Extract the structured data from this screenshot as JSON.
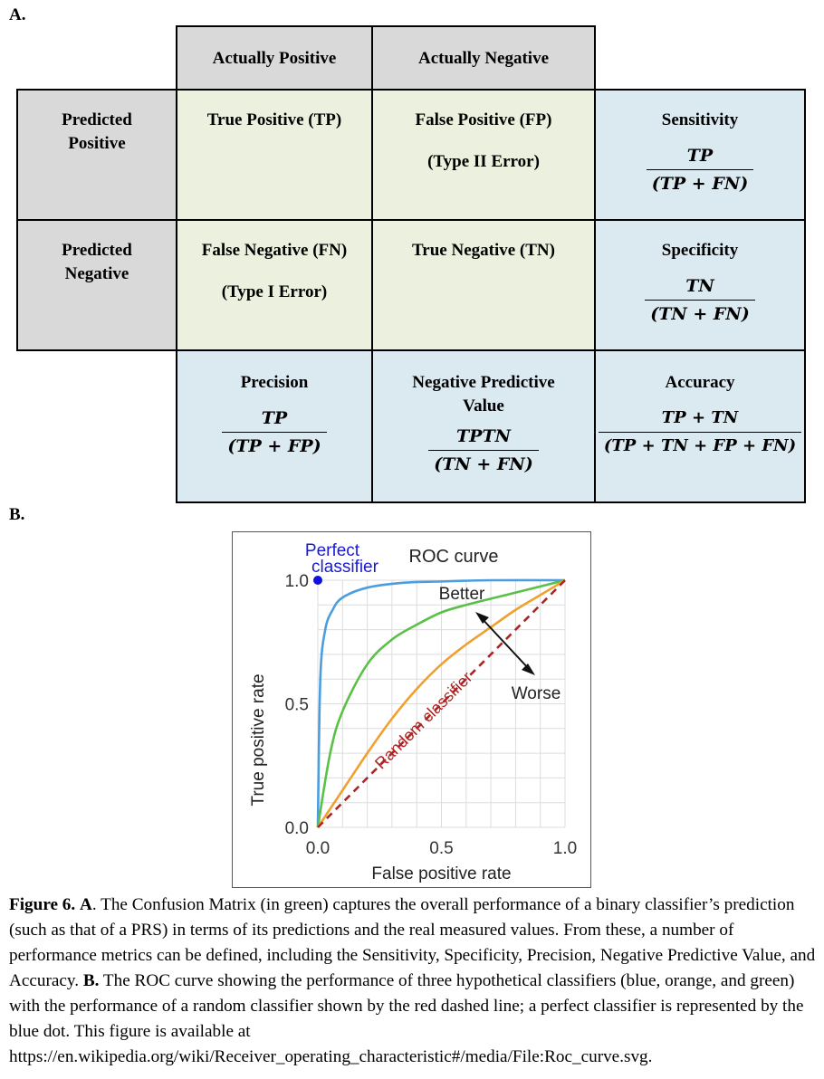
{
  "part_a_label": "A.",
  "part_b_label": "B.",
  "matrix": {
    "col_headers": [
      "Actually Positive",
      "Actually Negative"
    ],
    "rows": [
      {
        "header": "Predicted Positive",
        "cells": [
          {
            "line1": "True Positive (TP)",
            "line2": ""
          },
          {
            "line1": "False Positive (FP)",
            "line2": "(Type II Error)"
          }
        ],
        "metric": {
          "name": "Sensitivity",
          "num": "TP",
          "den": "(TP + FN)"
        }
      },
      {
        "header": "Predicted Negative",
        "cells": [
          {
            "line1": "False Negative (FN)",
            "line2": "(Type I Error)"
          },
          {
            "line1": "True Negative (TN)",
            "line2": ""
          }
        ],
        "metric": {
          "name": "Specificity",
          "num": "TN",
          "den": "(TN + FN)"
        }
      }
    ],
    "bottom_metrics": [
      {
        "name": "Precision",
        "num": "TP",
        "den": "(TP + FP)"
      },
      {
        "name": "Negative Predictive Value",
        "num": "TPTN",
        "den": "(TN + FN)"
      },
      {
        "name": "Accuracy",
        "num": "TP + TN",
        "den": "(TP + TN + FP + FN)"
      }
    ]
  },
  "roc": {
    "title": "ROC curve",
    "xlabel": "False positive rate",
    "ylabel": "True positive rate",
    "xticks": [
      "0.0",
      "0.5",
      "1.0"
    ],
    "yticks": [
      "0.0",
      "0.5",
      "1.0"
    ],
    "perfect_label_1": "Perfect",
    "perfect_label_2": "classifier",
    "better_label": "Better",
    "worse_label": "Worse",
    "random_label": "Random classifier",
    "colors": {
      "blue": "#4a9ee0",
      "green": "#5ac048",
      "orange": "#f0a030",
      "red": "#b22222",
      "dot": "#1010e0",
      "purple_text": "#1a1ad6"
    }
  },
  "chart_data": {
    "type": "line",
    "title": "ROC curve",
    "xlabel": "False positive rate",
    "ylabel": "True positive rate",
    "xlim": [
      0,
      1
    ],
    "ylim": [
      0,
      1
    ],
    "grid": true,
    "series": [
      {
        "color": "#4a9ee0",
        "x": [
          0,
          0.01,
          0.03,
          0.06,
          0.1,
          0.2,
          0.35,
          0.5,
          0.7,
          1.0
        ],
        "y": [
          0,
          0.6,
          0.8,
          0.88,
          0.93,
          0.97,
          0.99,
          0.995,
          1.0,
          1.0
        ]
      },
      {
        "color": "#5ac048",
        "x": [
          0,
          0.05,
          0.1,
          0.2,
          0.3,
          0.4,
          0.5,
          0.6,
          0.8,
          1.0
        ],
        "y": [
          0,
          0.3,
          0.47,
          0.66,
          0.76,
          0.82,
          0.87,
          0.9,
          0.95,
          1.0
        ]
      },
      {
        "color": "#f0a030",
        "x": [
          0,
          0.1,
          0.2,
          0.3,
          0.4,
          0.5,
          0.6,
          0.7,
          0.8,
          0.9,
          1.0
        ],
        "y": [
          0,
          0.15,
          0.3,
          0.44,
          0.56,
          0.66,
          0.74,
          0.81,
          0.88,
          0.94,
          1.0
        ]
      },
      {
        "name": "Random classifier",
        "color": "#b22222",
        "dashed": true,
        "x": [
          0,
          1
        ],
        "y": [
          0,
          1
        ]
      }
    ],
    "points": [
      {
        "name": "Perfect classifier",
        "x": 0,
        "y": 1,
        "color": "#1010e0"
      }
    ]
  },
  "caption": {
    "fig_label": "Figure 6.",
    "a_label": "A",
    "a_text": ". The Confusion Matrix (in green) captures the overall performance of a binary classifier’s prediction (such as that of a PRS) in terms of its predictions and the real measured values. From these, a number of performance metrics can be defined, including the Sensitivity, Specificity, Precision, Negative Predictive Value, and Accuracy. ",
    "b_label": "B.",
    "b_text": " The ROC curve showing the performance of three hypothetical classifiers (blue, orange, and green) with the performance of a random classifier shown by the red dashed line; a perfect classifier is represented by the blue dot. This figure is available at https://en.wikipedia.org/wiki/Receiver_operating_characteristic#/media/File:Roc_curve.svg."
  }
}
